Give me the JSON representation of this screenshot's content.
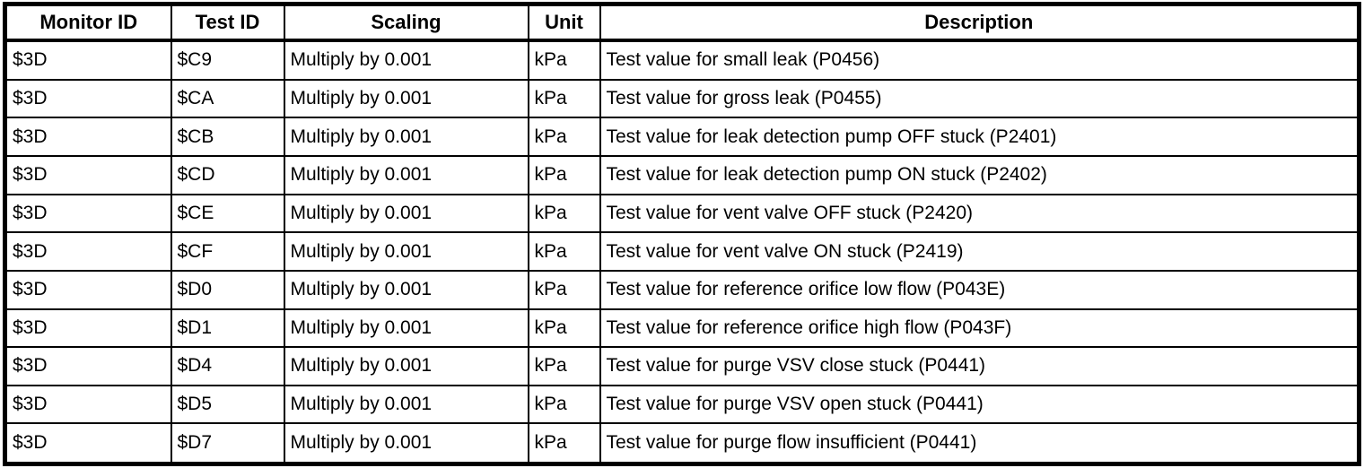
{
  "colors": {
    "border": "#000000",
    "text": "#000000",
    "background": "#ffffff"
  },
  "table": {
    "columns": [
      {
        "key": "monitor-id",
        "label": "Monitor ID"
      },
      {
        "key": "test-id",
        "label": "Test ID"
      },
      {
        "key": "scaling",
        "label": "Scaling"
      },
      {
        "key": "unit",
        "label": "Unit"
      },
      {
        "key": "description",
        "label": "Description"
      }
    ],
    "rows": [
      [
        "$3D",
        "$C9",
        "Multiply by 0.001",
        "kPa",
        "Test value for small leak (P0456)"
      ],
      [
        "$3D",
        "$CA",
        "Multiply by 0.001",
        "kPa",
        "Test value for gross leak (P0455)"
      ],
      [
        "$3D",
        "$CB",
        "Multiply by 0.001",
        "kPa",
        "Test value for leak detection pump OFF stuck (P2401)"
      ],
      [
        "$3D",
        "$CD",
        "Multiply by 0.001",
        "kPa",
        "Test value for leak detection pump ON stuck (P2402)"
      ],
      [
        "$3D",
        "$CE",
        "Multiply by 0.001",
        "kPa",
        "Test value for vent valve OFF stuck (P2420)"
      ],
      [
        "$3D",
        "$CF",
        "Multiply by 0.001",
        "kPa",
        "Test value for vent valve ON stuck (P2419)"
      ],
      [
        "$3D",
        "$D0",
        "Multiply by 0.001",
        "kPa",
        "Test value for reference orifice low flow (P043E)"
      ],
      [
        "$3D",
        "$D1",
        "Multiply by 0.001",
        "kPa",
        "Test value for reference orifice high flow (P043F)"
      ],
      [
        "$3D",
        "$D4",
        "Multiply by 0.001",
        "kPa",
        "Test value for purge VSV close stuck (P0441)"
      ],
      [
        "$3D",
        "$D5",
        "Multiply by 0.001",
        "kPa",
        "Test value for purge VSV open stuck (P0441)"
      ],
      [
        "$3D",
        "$D7",
        "Multiply by 0.001",
        "kPa",
        "Test value for purge flow insufficient (P0441)"
      ]
    ]
  }
}
